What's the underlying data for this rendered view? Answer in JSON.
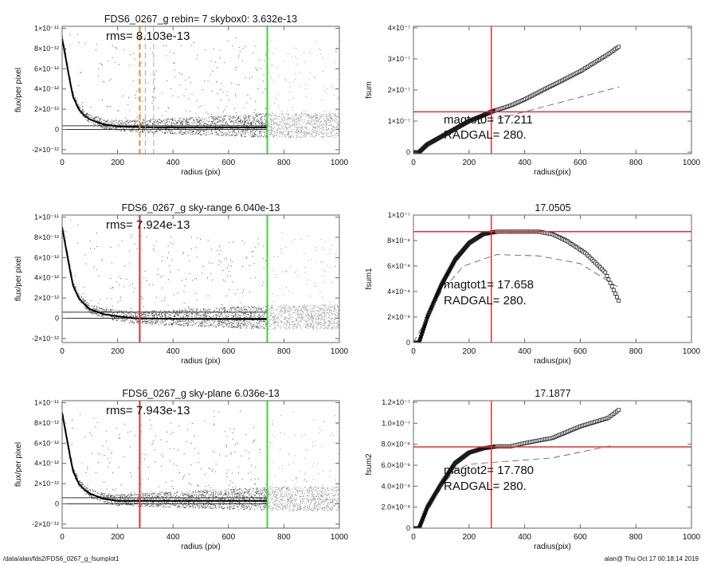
{
  "chart_data": [
    {
      "type": "scatter",
      "title": "FDS6_0267_g rebin= 7    skybox0:  3.632e-13",
      "annotation": "rms= 8.103e-13",
      "xlabel": "radius (pix)",
      "ylabel": "flux/per pixel",
      "xlim": [
        0,
        1000
      ],
      "ylim": [
        -2.4e-12,
        1.02e-11
      ],
      "xticks": [
        "0",
        "200",
        "400",
        "600",
        "800",
        "1000"
      ],
      "yticks": [
        [
          -2e-12,
          "-2×10⁻¹²"
        ],
        [
          0,
          "0"
        ],
        [
          2e-12,
          "2×10⁻¹²"
        ],
        [
          4e-12,
          "4×10⁻¹²"
        ],
        [
          6e-12,
          "6×10⁻¹²"
        ],
        [
          8e-12,
          "8×10⁻¹²"
        ],
        [
          1e-11,
          "1×10⁻¹¹"
        ]
      ],
      "profile": {
        "x": [
          0,
          10,
          20,
          30,
          40,
          60,
          80,
          100,
          150,
          200,
          300,
          500,
          740
        ],
        "y": [
          9e-12,
          7.5e-12,
          6e-12,
          4.5e-12,
          3.2e-12,
          2e-12,
          1.4e-12,
          1e-12,
          5e-13,
          3e-13,
          2.2e-13,
          2e-13,
          2e-13
        ]
      },
      "hlines": [
        3.632e-13,
        0
      ],
      "vlines": [
        {
          "x": 280,
          "color": "#f08a24",
          "dash": true
        },
        {
          "x": 300,
          "color": "#aaaaaa",
          "dash": true
        },
        {
          "x": 330,
          "color": "#aaaaaa",
          "dash": true
        },
        {
          "x": 740,
          "color": "#3cd23c",
          "dash": false
        }
      ]
    },
    {
      "type": "scatter",
      "title": "FDS6_0267_g sky-range  6.040e-13",
      "annotation": "rms= 7.924e-13",
      "xlabel": "radius (pix)",
      "ylabel": "flux/per pixel",
      "xlim": [
        0,
        1000
      ],
      "ylim": [
        -2.4e-12,
        1.02e-11
      ],
      "xticks": [
        "0",
        "200",
        "400",
        "600",
        "800",
        "1000"
      ],
      "yticks": [
        [
          -2e-12,
          "-2×10⁻¹²"
        ],
        [
          0,
          "0"
        ],
        [
          2e-12,
          "2×10⁻¹²"
        ],
        [
          4e-12,
          "4×10⁻¹²"
        ],
        [
          6e-12,
          "6×10⁻¹²"
        ],
        [
          8e-12,
          "8×10⁻¹²"
        ],
        [
          1e-11,
          "1×10⁻¹¹"
        ]
      ],
      "profile": {
        "x": [
          0,
          10,
          20,
          30,
          40,
          60,
          80,
          100,
          150,
          200,
          260,
          400,
          740
        ],
        "y": [
          9e-12,
          7.5e-12,
          6e-12,
          4.5e-12,
          3.2e-12,
          2e-12,
          1.4e-12,
          9e-13,
          4e-13,
          2e-13,
          0,
          -5e-14,
          -1e-13
        ]
      },
      "hlines": [
        6.04e-13,
        0
      ],
      "vlines": [
        {
          "x": 280,
          "color": "#e03030",
          "dash": false
        },
        {
          "x": 740,
          "color": "#3cd23c",
          "dash": false
        }
      ]
    },
    {
      "type": "scatter",
      "title": "FDS6_0267_g sky-plane  6.036e-13",
      "annotation": "rms= 7.943e-13",
      "xlabel": "radius (pix)",
      "ylabel": "flux/per pixel",
      "xlim": [
        0,
        1000
      ],
      "ylim": [
        -2.4e-12,
        1.02e-11
      ],
      "xticks": [
        "0",
        "200",
        "400",
        "600",
        "800",
        "1000"
      ],
      "yticks": [
        [
          -2e-12,
          "-2×10⁻¹²"
        ],
        [
          0,
          "0"
        ],
        [
          2e-12,
          "2×10⁻¹²"
        ],
        [
          4e-12,
          "4×10⁻¹²"
        ],
        [
          6e-12,
          "6×10⁻¹²"
        ],
        [
          8e-12,
          "8×10⁻¹²"
        ],
        [
          1e-11,
          "1×10⁻¹¹"
        ]
      ],
      "profile": {
        "x": [
          0,
          10,
          20,
          30,
          40,
          60,
          80,
          100,
          150,
          200,
          300,
          500,
          740
        ],
        "y": [
          9e-12,
          7.5e-12,
          6e-12,
          4.5e-12,
          3.2e-12,
          2e-12,
          1.4e-12,
          1e-12,
          5e-13,
          3e-13,
          3e-13,
          3e-13,
          3e-13
        ]
      },
      "hlines": [
        6.036e-13,
        0
      ],
      "vlines": [
        {
          "x": 280,
          "color": "#e03030",
          "dash": false
        },
        {
          "x": 740,
          "color": "#3cd23c",
          "dash": false
        }
      ]
    },
    {
      "type": "line",
      "title": "",
      "annotation": [
        "magtot0=  17.211",
        "RADGAL=    280."
      ],
      "xlabel": "radius(pix)",
      "ylabel": "fsum",
      "xlim": [
        0,
        1000
      ],
      "ylim": [
        -5e-09,
        4.05e-07
      ],
      "xticks": [
        "0",
        "200",
        "400",
        "600",
        "800",
        "1000"
      ],
      "yticks": [
        [
          0,
          "0"
        ],
        [
          1e-07,
          "1×10⁻⁷"
        ],
        [
          2e-07,
          "2×10⁻⁷"
        ],
        [
          3e-07,
          "3×10⁻⁷"
        ],
        [
          4e-07,
          "4×10⁻⁷"
        ]
      ],
      "series": {
        "x": [
          0,
          20,
          50,
          100,
          150,
          200,
          250,
          280,
          350,
          400,
          500,
          600,
          700,
          740
        ],
        "y": [
          0,
          0,
          2.5e-08,
          5e-08,
          7.5e-08,
          1e-07,
          1.18e-07,
          1.3e-07,
          1.5e-07,
          1.7e-07,
          2.15e-07,
          2.6e-07,
          3.15e-07,
          3.4e-07
        ]
      },
      "dashed": {
        "x": [
          230,
          740
        ],
        "y": [
          9e-08,
          2.1e-07
        ]
      },
      "crosshair": {
        "x": 280,
        "y": 1.3e-07,
        "color": "#e03030"
      }
    },
    {
      "type": "line",
      "title": "17.0505",
      "annotation": [
        "magtot1=  17.658",
        "RADGAL=    280."
      ],
      "xlabel": "radius(pix)",
      "ylabel": "fsum1",
      "xlim": [
        0,
        1000
      ],
      "ylim": [
        0,
        1e-07
      ],
      "xticks": [
        "0",
        "200",
        "400",
        "600",
        "800",
        "1000"
      ],
      "yticks": [
        [
          0,
          "0"
        ],
        [
          2e-08,
          "2×10⁻⁸"
        ],
        [
          4e-08,
          "4×10⁻⁸"
        ],
        [
          6e-08,
          "6×10⁻⁸"
        ],
        [
          8e-08,
          "8×10⁻⁸"
        ],
        [
          1e-07,
          "1×10⁻⁷"
        ]
      ],
      "series": {
        "x": [
          0,
          20,
          50,
          100,
          150,
          200,
          250,
          300,
          400,
          450,
          500,
          550,
          620,
          690,
          740
        ],
        "y": [
          0,
          0,
          2e-08,
          4.5e-08,
          6.5e-08,
          7.8e-08,
          8.5e-08,
          8.7e-08,
          8.7e-08,
          8.7e-08,
          8.5e-08,
          8e-08,
          7e-08,
          5.5e-08,
          3.2e-08
        ]
      },
      "dashed": {
        "x": [
          0,
          100,
          180,
          300,
          450,
          600,
          740
        ],
        "y": [
          0,
          4e-08,
          6e-08,
          6.9e-08,
          6.8e-08,
          6.2e-08,
          4.3e-08
        ]
      },
      "crosshair": {
        "x": 280,
        "y": 8.7e-08,
        "color": "#e03030"
      }
    },
    {
      "type": "line",
      "title": "17.1877",
      "annotation": [
        "magtot2=  17.780",
        "RADGAL=    280."
      ],
      "xlabel": "radius(pix)",
      "ylabel": "fsum2",
      "xlim": [
        0,
        1000
      ],
      "ylim": [
        0,
        1.215e-07
      ],
      "xticks": [
        "0",
        "200",
        "400",
        "600",
        "800",
        "1000"
      ],
      "yticks": [
        [
          0,
          "0"
        ],
        [
          2e-08,
          "2.0×10⁻⁸"
        ],
        [
          4e-08,
          "4.0×10⁻⁸"
        ],
        [
          6e-08,
          "6.0×10⁻⁸"
        ],
        [
          8e-08,
          "8.0×10⁻⁸"
        ],
        [
          1e-07,
          "1.0×10⁻⁷"
        ],
        [
          1.2e-07,
          "1.2×10⁻⁷"
        ]
      ],
      "series": {
        "x": [
          0,
          20,
          50,
          100,
          150,
          200,
          250,
          300,
          350,
          400,
          500,
          600,
          700,
          740
        ],
        "y": [
          0,
          0,
          2e-08,
          4.2e-08,
          6.2e-08,
          7.2e-08,
          7.6e-08,
          7.8e-08,
          7.8e-08,
          8.1e-08,
          8.6e-08,
          9.7e-08,
          1.05e-07,
          1.13e-07
        ]
      },
      "dashed": {
        "x": [
          60,
          100,
          150,
          200,
          300,
          500,
          720
        ],
        "y": [
          2e-08,
          4e-08,
          5.5e-08,
          6.1e-08,
          6.3e-08,
          6.7e-08,
          7.9e-08
        ]
      },
      "crosshair": {
        "x": 280,
        "y": 7.75e-08,
        "color": "#e03030"
      }
    }
  ],
  "footer": {
    "left": "/data/alan/fds2/FDS6_0267_g_fsumplot1",
    "right": "alan@  Thu Oct 17 00:18:14 2019"
  }
}
